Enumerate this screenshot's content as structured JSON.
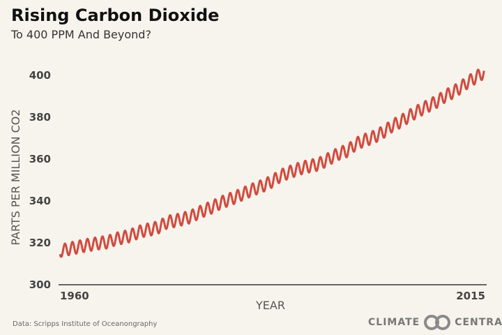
{
  "header": {
    "title": "Rising Carbon Dioxide",
    "subtitle": "To 400 PPM And Beyond?"
  },
  "footer": {
    "source": "Data: Scripps Institute of Oceanongraphy",
    "logo_left": "CLIMATE",
    "logo_right": "CENTRAL"
  },
  "colors": {
    "line": "#d14b3f",
    "background": "#f7f4ee"
  },
  "chart_data": {
    "type": "line",
    "title": "Rising Carbon Dioxide",
    "subtitle": "To 400 PPM And Beyond?",
    "xlabel": "YEAR",
    "ylabel": "PARTS PER MILLION  CO2",
    "xlim": [
      1958.5,
      2015.5
    ],
    "ylim": [
      300,
      402
    ],
    "yticks": [
      300,
      320,
      340,
      360,
      380,
      400
    ],
    "xtick_labels": [
      "1960",
      "2015"
    ],
    "grid": false,
    "series": [
      {
        "x": [
          1959,
          1960,
          1961,
          1962,
          1963,
          1964,
          1965,
          1966,
          1967,
          1968,
          1969,
          1970,
          1971,
          1972,
          1973,
          1974,
          1975,
          1976,
          1977,
          1978,
          1979,
          1980,
          1981,
          1982,
          1983,
          1984,
          1985,
          1986,
          1987,
          1988,
          1989,
          1990,
          1991,
          1992,
          1993,
          1994,
          1995,
          1996,
          1997,
          1998,
          1999,
          2000,
          2001,
          2002,
          2003,
          2004,
          2005,
          2006,
          2007,
          2008,
          2009,
          2010,
          2011,
          2012,
          2013,
          2014,
          2015
        ],
        "y": [
          316.0,
          316.9,
          317.6,
          318.4,
          319.0,
          319.6,
          320.0,
          321.4,
          322.2,
          323.0,
          324.6,
          325.7,
          326.3,
          327.4,
          329.7,
          330.2,
          331.1,
          332.0,
          333.8,
          335.4,
          336.8,
          338.7,
          340.1,
          341.4,
          343.0,
          344.6,
          346.0,
          347.4,
          349.2,
          351.6,
          353.1,
          354.4,
          355.6,
          356.4,
          357.1,
          358.8,
          360.8,
          362.6,
          363.7,
          366.7,
          368.4,
          369.6,
          371.1,
          373.2,
          375.8,
          377.5,
          379.8,
          381.9,
          383.8,
          385.6,
          387.4,
          389.9,
          391.6,
          393.8,
          396.5,
          398.6,
          400.8
        ],
        "seasonal_amplitude_ppm": 3
      }
    ]
  }
}
